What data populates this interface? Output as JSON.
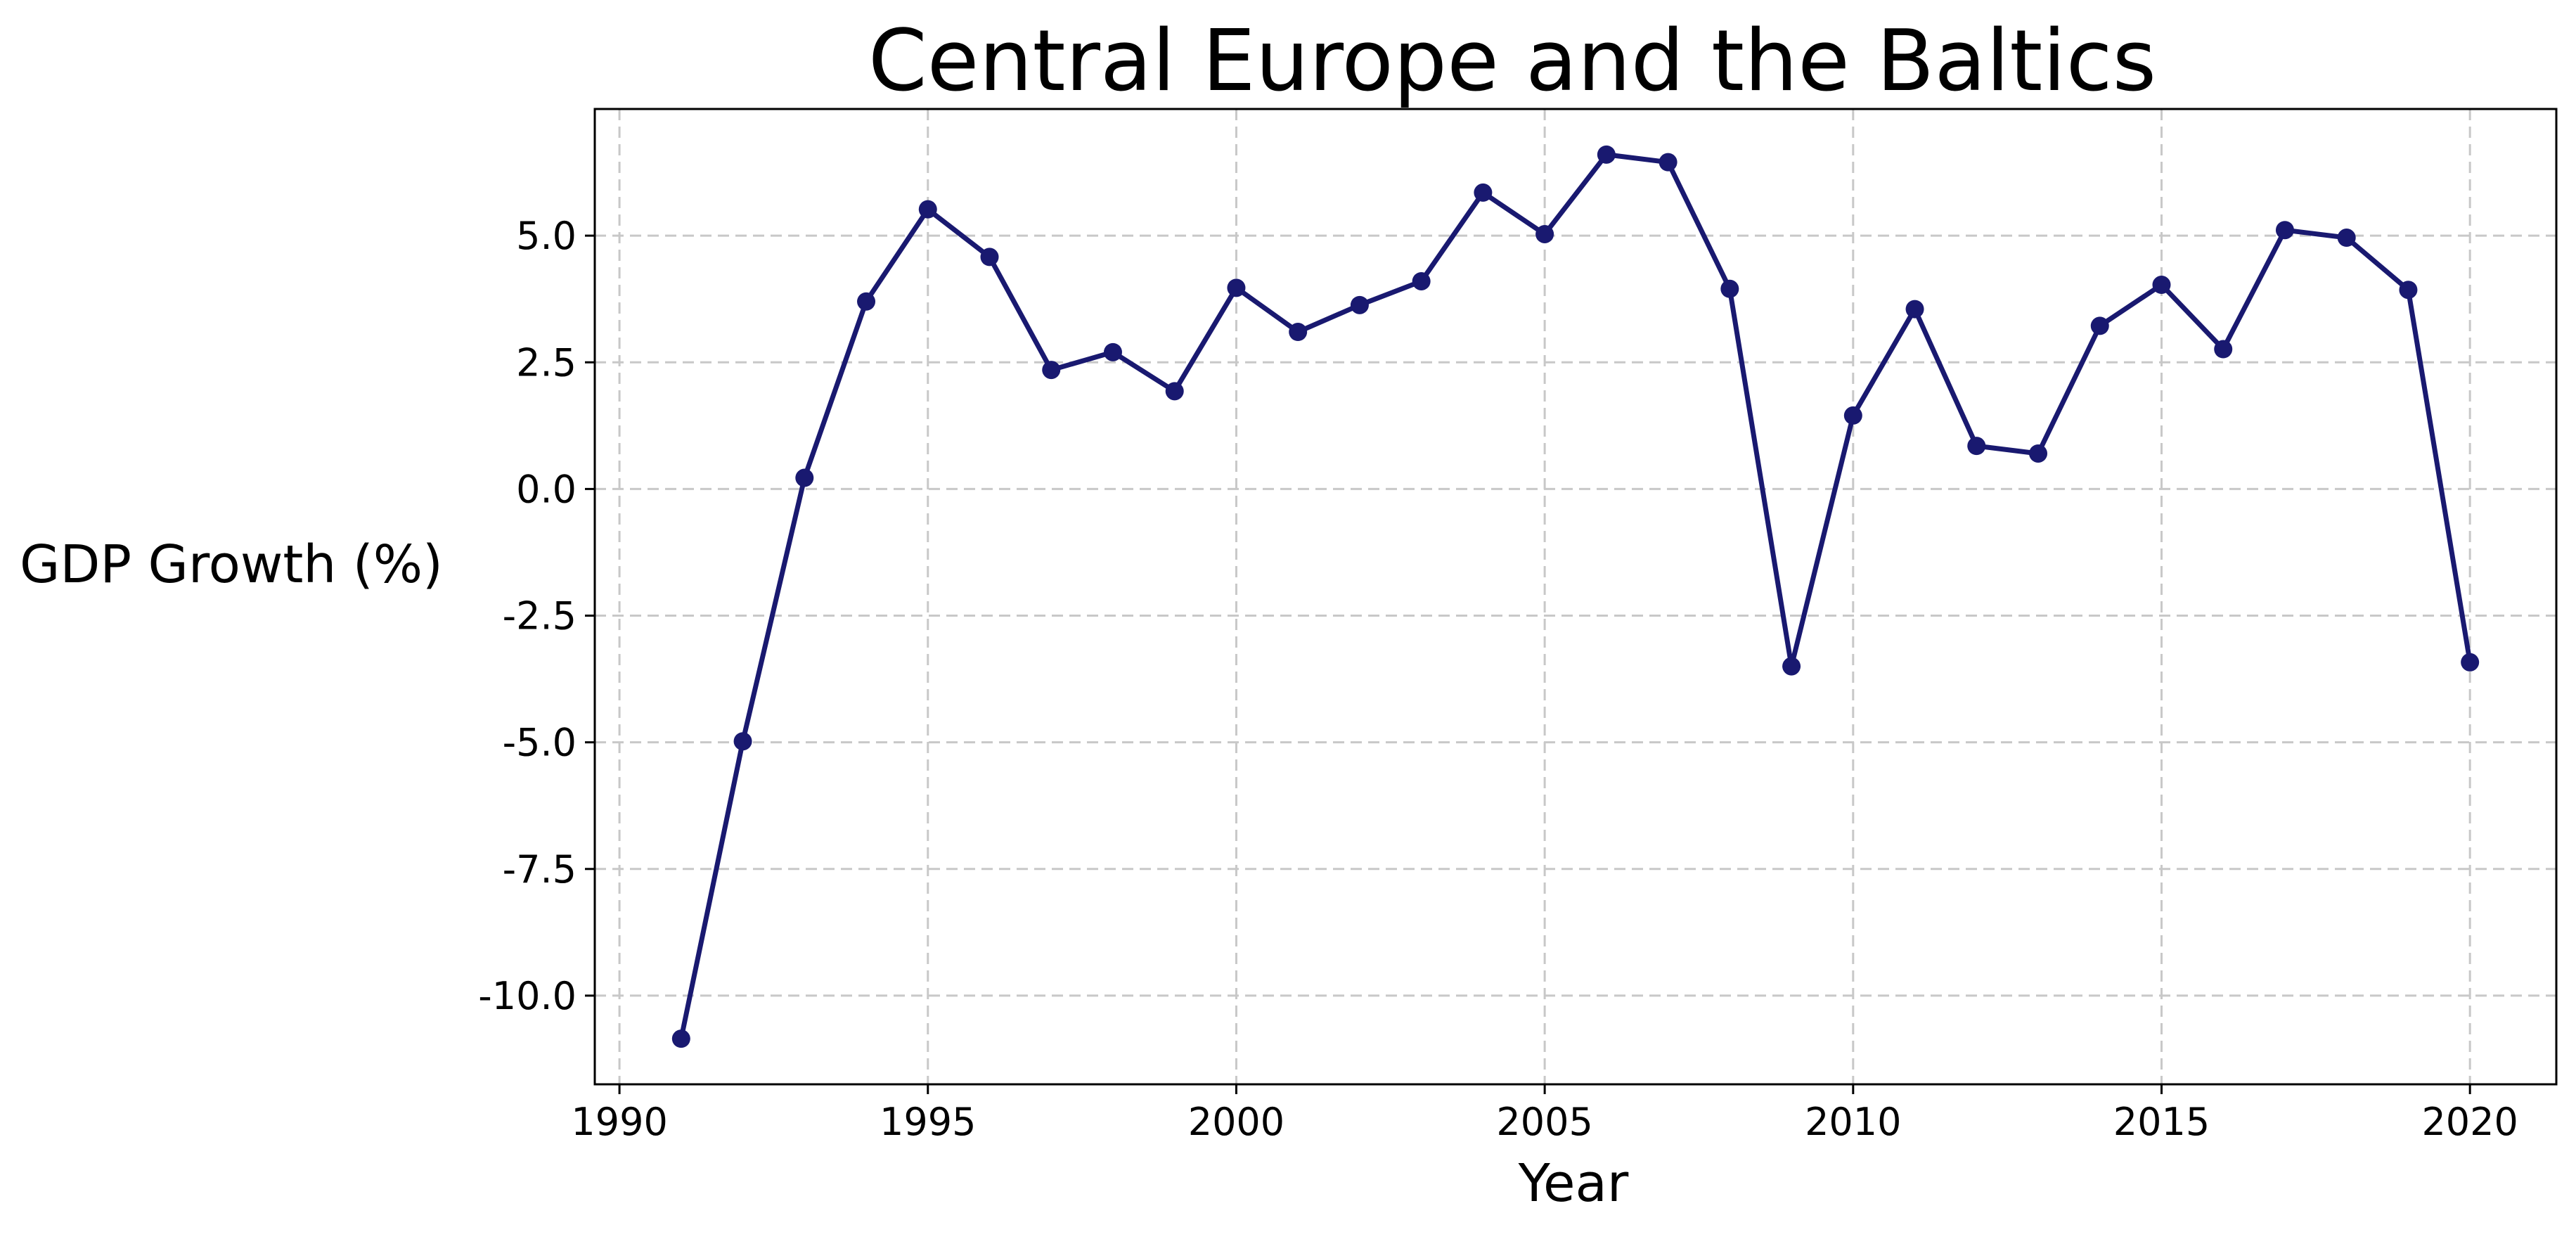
{
  "chart_data": {
    "type": "line",
    "title": "Central Europe and the Baltics",
    "xlabel": "Year",
    "ylabel": "GDP Growth (%)",
    "xlim": [
      1989.6,
      2021.4
    ],
    "ylim": [
      -11.75,
      7.5
    ],
    "x_ticks": [
      1990,
      1995,
      2000,
      2005,
      2010,
      2015,
      2020
    ],
    "x_tick_labels": [
      "1990",
      "1995",
      "2000",
      "2005",
      "2010",
      "2015",
      "2020"
    ],
    "y_ticks": [
      5.0,
      2.5,
      0.0,
      -2.5,
      -5.0,
      -7.5,
      -10.0
    ],
    "y_tick_labels": [
      "5.0",
      "2.5",
      "0.0",
      "-2.5",
      "-5.0",
      "-7.5",
      "-10.0"
    ],
    "grid": true,
    "series": [
      {
        "color": "#191970",
        "marker": "circle",
        "x": [
          1991,
          1992,
          1993,
          1994,
          1995,
          1996,
          1997,
          1998,
          1999,
          2000,
          2001,
          2002,
          2003,
          2004,
          2005,
          2006,
          2007,
          2008,
          2009,
          2010,
          2011,
          2012,
          2013,
          2014,
          2015,
          2016,
          2017,
          2018,
          2019,
          2020
        ],
        "values": [
          -10.85,
          -4.98,
          0.22,
          3.7,
          5.52,
          4.58,
          2.35,
          2.7,
          1.93,
          3.97,
          3.1,
          3.63,
          4.1,
          5.85,
          5.03,
          6.6,
          6.45,
          3.95,
          -3.5,
          1.45,
          3.55,
          0.85,
          0.7,
          3.22,
          4.03,
          2.76,
          5.11,
          4.96,
          3.93,
          -3.42
        ]
      }
    ]
  }
}
